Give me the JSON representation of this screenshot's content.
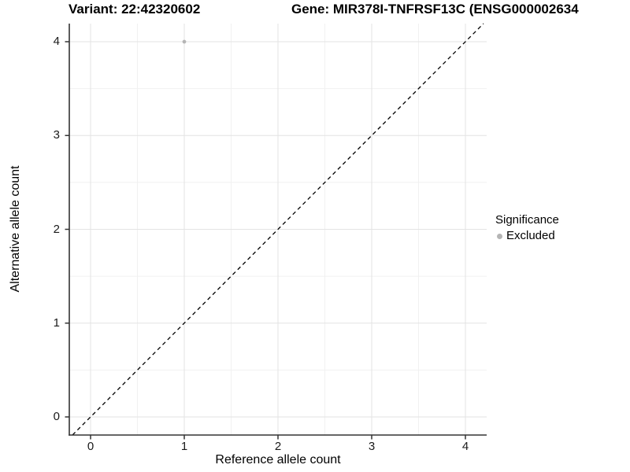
{
  "header": {
    "variant_title": "Variant: 22:42320602",
    "gene_title": "Gene: MIR378I-TNFRSF13C (ENSG000002634"
  },
  "chart_data": {
    "type": "scatter",
    "xlabel": "Reference allele count",
    "ylabel": "Alternative allele count",
    "xlim": [
      -0.227,
      4.227
    ],
    "ylim": [
      -0.193,
      4.193
    ],
    "x_ticks": [
      0,
      1,
      2,
      3,
      4
    ],
    "y_ticks": [
      0,
      1,
      2,
      3,
      4
    ],
    "x_minor_ticks": [
      0.5,
      1.5,
      2.5,
      3.5
    ],
    "y_minor_ticks": [
      0.5,
      1.5,
      2.5,
      3.5
    ],
    "grid": true,
    "series": [
      {
        "name": "Excluded",
        "color": "#b5b5b5",
        "point_radius": 2.4,
        "points": [
          {
            "x": 1,
            "y": 4
          }
        ]
      }
    ],
    "identity_line": {
      "x1": -0.193,
      "y1": -0.193,
      "x2": 4.193,
      "y2": 4.193,
      "style": "dashed",
      "color": "#000000"
    },
    "legend": {
      "title": "Significance",
      "position": "right",
      "items": [
        {
          "label": "Excluded",
          "color": "#b5b5b5"
        }
      ]
    },
    "colors": {
      "grid_major": "#e3e3e3",
      "grid_minor": "#f1f1f1",
      "axis_line": "#333333",
      "tick": "#333333"
    }
  }
}
